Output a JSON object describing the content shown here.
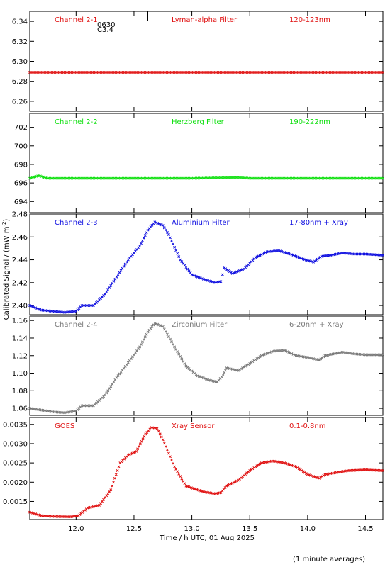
{
  "figure": {
    "xlabel": "Time / h UTC, 01 Aug 2025",
    "ylabel": "Calibrated Signal / (mW m",
    "ylabel_sup": "-2",
    "ylabel_close": ")",
    "footnote": "(1 minute averages)"
  },
  "chart_data": [
    {
      "type": "scatter",
      "channel": "Channel 2-1",
      "filter": "Lyman-alpha Filter",
      "band": "120-123nm",
      "annotation_1": "0630",
      "annotation_2": "C3.4",
      "color": "#e01010",
      "xlim": [
        11.6,
        14.65
      ],
      "ylim": [
        6.25,
        6.35
      ],
      "yticks": [
        "6.26",
        "6.28",
        "6.30",
        "6.32",
        "6.34"
      ],
      "ytick_values": [
        6.26,
        6.28,
        6.3,
        6.32,
        6.34
      ],
      "points": [
        [
          11.6,
          6.289
        ],
        [
          12.0,
          6.289
        ],
        [
          12.5,
          6.289
        ],
        [
          13.0,
          6.289
        ],
        [
          13.5,
          6.289
        ],
        [
          14.0,
          6.289
        ],
        [
          14.65,
          6.289
        ]
      ]
    },
    {
      "type": "scatter",
      "channel": "Channel 2-2",
      "filter": "Herzberg Filter",
      "band": "190-222nm",
      "color": "#10e010",
      "xlim": [
        11.6,
        14.65
      ],
      "ylim": [
        692.8,
        703.5
      ],
      "yticks": [
        "694",
        "696",
        "698",
        "700",
        "702"
      ],
      "ytick_values": [
        694,
        696,
        698,
        700,
        702
      ],
      "points": [
        [
          11.6,
          696.5
        ],
        [
          11.68,
          696.8
        ],
        [
          11.75,
          696.5
        ],
        [
          12.0,
          696.5
        ],
        [
          12.5,
          696.5
        ],
        [
          13.0,
          696.5
        ],
        [
          13.4,
          696.6
        ],
        [
          13.5,
          696.5
        ],
        [
          14.0,
          696.5
        ],
        [
          14.65,
          696.5
        ]
      ]
    },
    {
      "type": "scatter",
      "channel": "Channel 2-3",
      "filter": "Aluminium Filter",
      "band": "17-80nm + Xray",
      "color": "#1010e0",
      "xlim": [
        11.6,
        14.65
      ],
      "ylim": [
        2.392,
        2.48
      ],
      "yticks": [
        "2.40",
        "2.42",
        "2.44",
        "2.46",
        "2.48"
      ],
      "ytick_values": [
        2.4,
        2.42,
        2.44,
        2.46,
        2.48
      ],
      "points": [
        [
          11.6,
          2.4
        ],
        [
          11.7,
          2.396
        ],
        [
          11.8,
          2.395
        ],
        [
          11.9,
          2.394
        ],
        [
          12.0,
          2.395
        ],
        [
          12.05,
          2.4
        ],
        [
          12.15,
          2.4
        ],
        [
          12.25,
          2.41
        ],
        [
          12.35,
          2.425
        ],
        [
          12.45,
          2.44
        ],
        [
          12.55,
          2.452
        ],
        [
          12.62,
          2.466
        ],
        [
          12.68,
          2.473
        ],
        [
          12.75,
          2.47
        ],
        [
          12.8,
          2.462
        ],
        [
          12.9,
          2.44
        ],
        [
          13.0,
          2.427
        ],
        [
          13.1,
          2.423
        ],
        [
          13.2,
          2.42
        ],
        [
          13.25,
          2.421
        ],
        [
          13.28,
          2.433
        ],
        [
          13.35,
          2.428
        ],
        [
          13.45,
          2.432
        ],
        [
          13.55,
          2.442
        ],
        [
          13.65,
          2.447
        ],
        [
          13.75,
          2.448
        ],
        [
          13.85,
          2.445
        ],
        [
          13.95,
          2.441
        ],
        [
          14.05,
          2.438
        ],
        [
          14.12,
          2.443
        ],
        [
          14.2,
          2.444
        ],
        [
          14.3,
          2.446
        ],
        [
          14.4,
          2.445
        ],
        [
          14.5,
          2.445
        ],
        [
          14.65,
          2.444
        ]
      ]
    },
    {
      "type": "scatter",
      "channel": "Channel 2-4",
      "filter": "Zirconium Filter",
      "band": "6-20nm + Xray",
      "color": "#7a7a7a",
      "xlim": [
        11.6,
        14.65
      ],
      "ylim": [
        1.052,
        1.165
      ],
      "yticks": [
        "1.06",
        "1.08",
        "1.10",
        "1.12",
        "1.14",
        "1.16"
      ],
      "ytick_values": [
        1.06,
        1.08,
        1.1,
        1.12,
        1.14,
        1.16
      ],
      "points": [
        [
          11.6,
          1.06
        ],
        [
          11.7,
          1.058
        ],
        [
          11.8,
          1.056
        ],
        [
          11.9,
          1.055
        ],
        [
          12.0,
          1.057
        ],
        [
          12.05,
          1.063
        ],
        [
          12.15,
          1.063
        ],
        [
          12.25,
          1.075
        ],
        [
          12.35,
          1.095
        ],
        [
          12.45,
          1.112
        ],
        [
          12.55,
          1.13
        ],
        [
          12.62,
          1.147
        ],
        [
          12.68,
          1.157
        ],
        [
          12.75,
          1.153
        ],
        [
          12.85,
          1.13
        ],
        [
          12.95,
          1.108
        ],
        [
          13.05,
          1.097
        ],
        [
          13.15,
          1.092
        ],
        [
          13.22,
          1.09
        ],
        [
          13.27,
          1.098
        ],
        [
          13.3,
          1.106
        ],
        [
          13.4,
          1.103
        ],
        [
          13.5,
          1.111
        ],
        [
          13.6,
          1.12
        ],
        [
          13.7,
          1.125
        ],
        [
          13.8,
          1.126
        ],
        [
          13.9,
          1.12
        ],
        [
          14.0,
          1.118
        ],
        [
          14.1,
          1.115
        ],
        [
          14.15,
          1.12
        ],
        [
          14.3,
          1.124
        ],
        [
          14.4,
          1.122
        ],
        [
          14.5,
          1.121
        ],
        [
          14.65,
          1.121
        ]
      ]
    },
    {
      "type": "scatter",
      "channel": "GOES",
      "filter": "Xray Sensor",
      "band": "0.1-0.8nm",
      "color": "#e01010",
      "xlim": [
        11.6,
        14.65
      ],
      "ylim": [
        0.00103,
        0.00368
      ],
      "yticks": [
        "0.0015",
        "0.0020",
        "0.0025",
        "0.0030",
        "0.0035"
      ],
      "ytick_values": [
        0.0015,
        0.002,
        0.0025,
        0.003,
        0.0035
      ],
      "points": [
        [
          11.6,
          0.00122
        ],
        [
          11.7,
          0.00113
        ],
        [
          11.8,
          0.00111
        ],
        [
          11.95,
          0.0011
        ],
        [
          12.02,
          0.00113
        ],
        [
          12.1,
          0.00133
        ],
        [
          12.2,
          0.0014
        ],
        [
          12.3,
          0.0018
        ],
        [
          12.38,
          0.0025
        ],
        [
          12.45,
          0.0027
        ],
        [
          12.52,
          0.0028
        ],
        [
          12.6,
          0.00325
        ],
        [
          12.65,
          0.00342
        ],
        [
          12.7,
          0.0034
        ],
        [
          12.75,
          0.0031
        ],
        [
          12.85,
          0.0024
        ],
        [
          12.95,
          0.0019
        ],
        [
          13.1,
          0.00175
        ],
        [
          13.2,
          0.0017
        ],
        [
          13.25,
          0.00173
        ],
        [
          13.3,
          0.0019
        ],
        [
          13.4,
          0.00205
        ],
        [
          13.5,
          0.0023
        ],
        [
          13.6,
          0.0025
        ],
        [
          13.7,
          0.00255
        ],
        [
          13.8,
          0.0025
        ],
        [
          13.9,
          0.0024
        ],
        [
          14.0,
          0.0022
        ],
        [
          14.1,
          0.0021
        ],
        [
          14.15,
          0.0022
        ],
        [
          14.25,
          0.00225
        ],
        [
          14.35,
          0.0023
        ],
        [
          14.5,
          0.00232
        ],
        [
          14.65,
          0.0023
        ]
      ]
    }
  ],
  "xaxis": {
    "ticks": [
      "12.0",
      "12.5",
      "13.0",
      "13.5",
      "14.0",
      "14.5"
    ],
    "tick_values": [
      12.0,
      12.5,
      13.0,
      13.5,
      14.0,
      14.5
    ]
  }
}
